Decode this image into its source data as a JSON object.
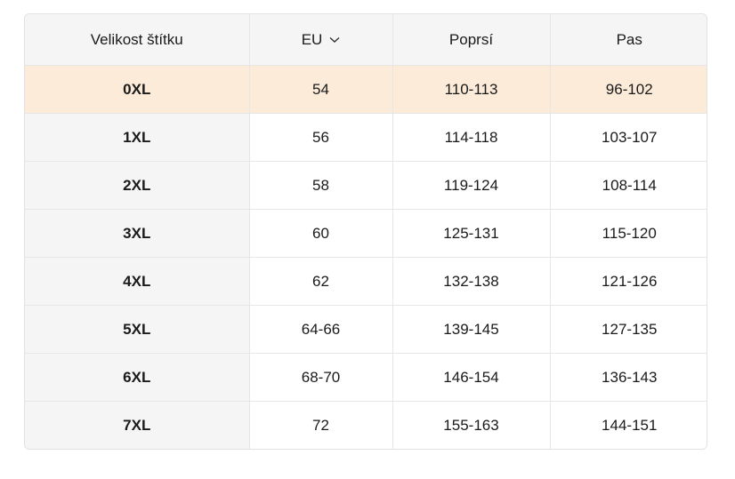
{
  "table": {
    "header": [
      "Velikost štítku",
      "EU",
      "Poprsí",
      "Pas"
    ],
    "rows": [
      [
        "0XL",
        "54",
        "110-113",
        "96-102"
      ],
      [
        "1XL",
        "56",
        "114-118",
        "103-107"
      ],
      [
        "2XL",
        "58",
        "119-124",
        "108-114"
      ],
      [
        "3XL",
        "60",
        "125-131",
        "115-120"
      ],
      [
        "4XL",
        "62",
        "132-138",
        "121-126"
      ],
      [
        "5XL",
        "64-66",
        "139-145",
        "127-135"
      ],
      [
        "6XL",
        "68-70",
        "146-154",
        "136-143"
      ],
      [
        "7XL",
        "72",
        "155-163",
        "144-151"
      ]
    ]
  }
}
